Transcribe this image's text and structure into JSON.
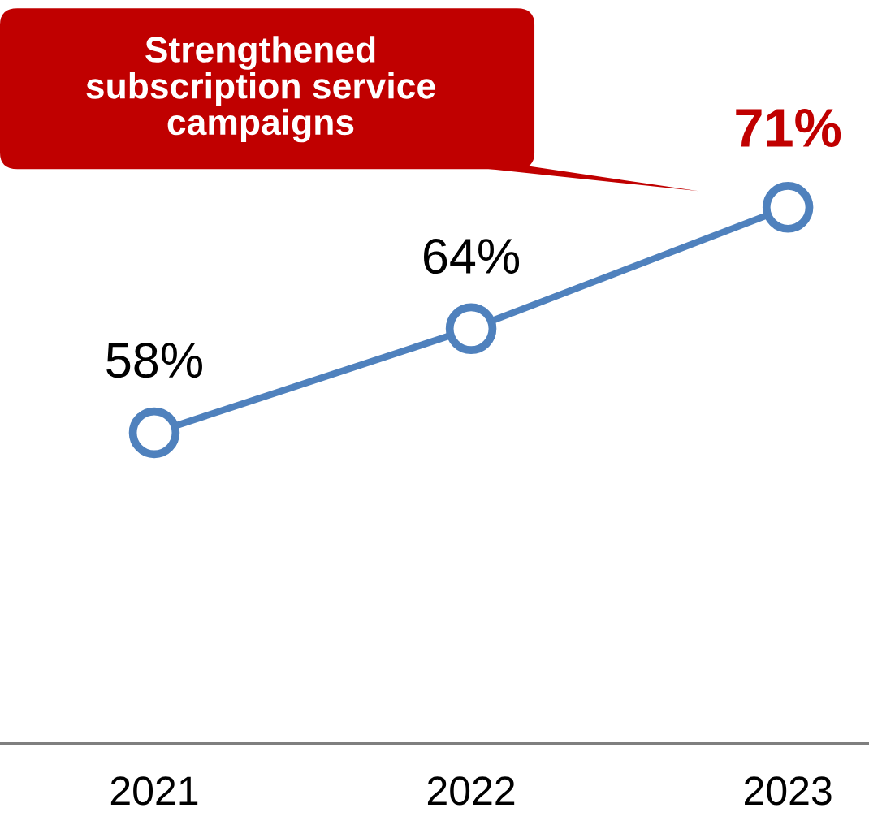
{
  "chart_data": {
    "type": "line",
    "categories": [
      "2021",
      "2022",
      "2023"
    ],
    "series": [
      {
        "color": "#4f81bd",
        "values": [
          58,
          64,
          71
        ],
        "value_labels": [
          "58%",
          "64%",
          "71%"
        ]
      }
    ],
    "tick_labels": "x",
    "marker": "circle",
    "line_style": "solid",
    "annotations": [
      "Strengthened\nsubscription service\ncampaigns"
    ]
  }
}
